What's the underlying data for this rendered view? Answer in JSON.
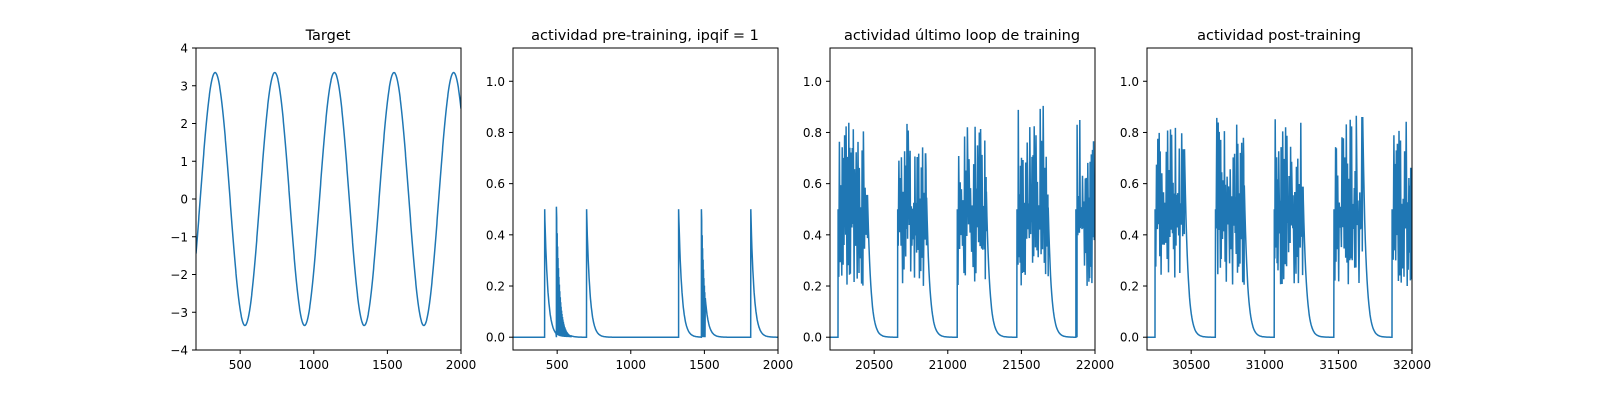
{
  "figure": {
    "line_color": "#1f77b4"
  },
  "chart_data": [
    {
      "type": "line",
      "title": "Target",
      "xlim": [
        200,
        2000
      ],
      "ylim": [
        -4,
        4
      ],
      "xticks": [
        500,
        1000,
        1500,
        2000
      ],
      "yticks": [
        -4,
        -3,
        -2,
        -1,
        0,
        1,
        2,
        3,
        4
      ],
      "series": [
        {
          "kind": "sine",
          "amplitude": 3.35,
          "period": 405,
          "peak_x": [
            330,
            735,
            1135,
            1535,
            1940
          ],
          "trough_x": [
            530,
            935,
            1335,
            1735
          ],
          "x_start": 200,
          "x_end": 2000,
          "y_start": -1.6,
          "y_end": 1.7
        }
      ]
    },
    {
      "type": "line",
      "title": "actividad pre-training, ipqif = 1",
      "xlim": [
        200,
        2000
      ],
      "ylim": [
        -0.05,
        1.13
      ],
      "xticks": [
        500,
        1000,
        1500,
        2000
      ],
      "yticks": [
        0.0,
        0.2,
        0.4,
        0.6,
        0.8,
        1.0
      ],
      "series": [
        {
          "kind": "spikes",
          "baseline": 0,
          "spike_x": [
            415,
            495,
            700,
            1325,
            1480,
            1815
          ],
          "spike_peak": [
            0.5,
            0.51,
            0.5,
            0.5,
            0.5,
            0.5
          ],
          "decay": 22
        }
      ]
    },
    {
      "type": "line",
      "title": "actividad último loop de training",
      "xlim": [
        20200,
        22000
      ],
      "ylim": [
        -0.05,
        1.13
      ],
      "xticks": [
        20500,
        21000,
        21500,
        22000
      ],
      "yticks": [
        0.0,
        0.2,
        0.4,
        0.6,
        0.8,
        1.0
      ],
      "series": [
        {
          "kind": "bursts",
          "baseline": 0,
          "bursts": [
            {
              "start": 20255,
              "end": 20455,
              "max": 0.84
            },
            {
              "start": 20660,
              "end": 20850,
              "max": 0.85
            },
            {
              "start": 21065,
              "end": 21260,
              "max": 0.86
            },
            {
              "start": 21470,
              "end": 21680,
              "max": 0.92
            },
            {
              "start": 21870,
              "end": 22000,
              "max": 0.89
            }
          ],
          "decay": 22
        }
      ]
    },
    {
      "type": "line",
      "title": "actividad post-training",
      "xlim": [
        30200,
        32000
      ],
      "ylim": [
        -0.05,
        1.13
      ],
      "xticks": [
        30500,
        31000,
        31500,
        32000
      ],
      "yticks": [
        0.0,
        0.2,
        0.4,
        0.6,
        0.8,
        1.0
      ],
      "series": [
        {
          "kind": "bursts",
          "baseline": 0,
          "bursts": [
            {
              "start": 30255,
              "end": 30455,
              "max": 0.84
            },
            {
              "start": 30665,
              "end": 30855,
              "max": 0.86
            },
            {
              "start": 31065,
              "end": 31260,
              "max": 0.86
            },
            {
              "start": 31470,
              "end": 31665,
              "max": 0.87
            },
            {
              "start": 31865,
              "end": 32000,
              "max": 0.87
            }
          ],
          "decay": 22
        }
      ]
    }
  ]
}
